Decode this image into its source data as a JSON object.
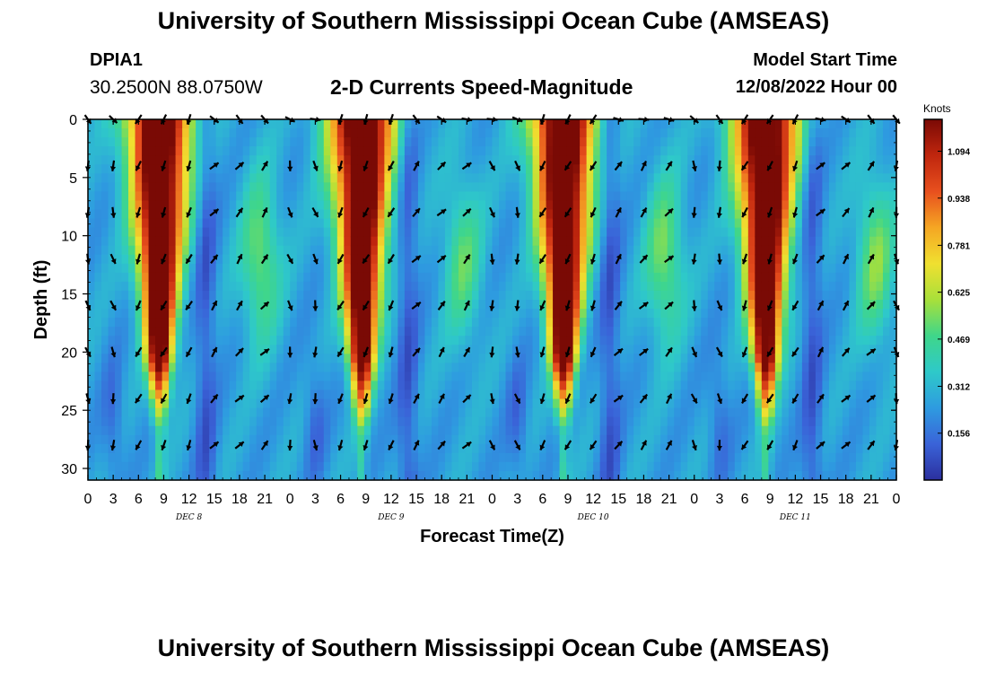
{
  "header": {
    "title": "University of Southern Mississippi Ocean Cube (AMSEAS)",
    "station_id": "DPIA1",
    "coords": "30.2500N  88.0750W",
    "chart_title": "2-D Currents Speed-Magnitude",
    "model_start_label": "Model Start Time",
    "model_start_value": "12/08/2022 Hour 00"
  },
  "footer": {
    "title": "University of Southern Mississippi Ocean Cube (AMSEAS)"
  },
  "chart_data": {
    "type": "heatmap",
    "title": "2-D Currents Speed-Magnitude",
    "xlabel": "Forecast Time(Z)",
    "ylabel": "Depth (ft)",
    "x_unit": "hours since 12/08/2022 00Z",
    "xlim": [
      0,
      96
    ],
    "ylim": [
      0,
      31
    ],
    "x_tick_labels": [
      "0",
      "3",
      "6",
      "9",
      "12",
      "15",
      "18",
      "21",
      "0",
      "3",
      "6",
      "9",
      "12",
      "15",
      "18",
      "21",
      "0",
      "3",
      "6",
      "9",
      "12",
      "15",
      "18",
      "21",
      "0",
      "3",
      "6",
      "9",
      "12",
      "15",
      "18",
      "21",
      "0"
    ],
    "y_ticks": [
      0,
      5,
      10,
      15,
      20,
      25,
      30
    ],
    "day_labels": [
      {
        "label": "DEC 8",
        "hour": 12
      },
      {
        "label": "DEC 9",
        "hour": 36
      },
      {
        "label": "DEC 10",
        "hour": 60
      },
      {
        "label": "DEC 11",
        "hour": 84
      }
    ],
    "colorbar": {
      "unit": "Knots",
      "ticks": [
        "1.094",
        "0.938",
        "0.781",
        "0.625",
        "0.469",
        "0.312",
        "0.156"
      ],
      "tick_values": [
        1.094,
        0.938,
        0.781,
        0.625,
        0.469,
        0.312,
        0.156
      ],
      "range": [
        0,
        1.2
      ],
      "stops": [
        "#2b2f9e",
        "#3a63d8",
        "#2e9be0",
        "#2ec9c9",
        "#3fd68a",
        "#a8e03a",
        "#f0e030",
        "#f5a623",
        "#e8501e",
        "#c0260e",
        "#7a0a05"
      ]
    },
    "vector_depths": [
      0,
      4,
      8,
      12,
      16,
      20,
      24,
      28
    ],
    "vector_hours": [
      0,
      3,
      6,
      9,
      12,
      15,
      18,
      21,
      24,
      27,
      30,
      33,
      36,
      39,
      42,
      45,
      48,
      51,
      54,
      57,
      60,
      63,
      66,
      69,
      72,
      75,
      78,
      81,
      84,
      87,
      90,
      93,
      96
    ],
    "strong_flow_events": [
      {
        "center_hour": 8.5,
        "peak_knots": 1.15
      },
      {
        "center_hour": 32.5,
        "peak_knots": 1.15
      },
      {
        "center_hour": 56.5,
        "peak_knots": 1.15
      },
      {
        "center_hour": 80.5,
        "peak_knots": 1.15
      }
    ],
    "moderate_flow_events": [
      {
        "center_hour": 20.5,
        "peak_knots": 0.55
      },
      {
        "center_hour": 44.5,
        "peak_knots": 0.5
      },
      {
        "center_hour": 68.5,
        "peak_knots": 0.55
      },
      {
        "center_hour": 93.5,
        "peak_knots": 0.55
      }
    ]
  }
}
